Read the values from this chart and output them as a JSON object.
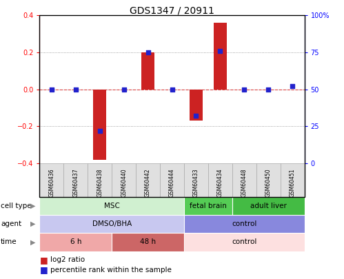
{
  "title": "GDS1347 / 20911",
  "samples": [
    "GSM60436",
    "GSM60437",
    "GSM60438",
    "GSM60440",
    "GSM60442",
    "GSM60444",
    "GSM60433",
    "GSM60434",
    "GSM60448",
    "GSM60450",
    "GSM60451"
  ],
  "log2_ratio": [
    0.0,
    0.0,
    -0.38,
    0.0,
    0.2,
    0.0,
    -0.17,
    0.36,
    0.0,
    0.0,
    0.0
  ],
  "percentile_rank": [
    50,
    50,
    22,
    50,
    75,
    50,
    32,
    76,
    50,
    50,
    52
  ],
  "ylim": [
    -0.4,
    0.4
  ],
  "y_ticks": [
    -0.4,
    -0.2,
    0.0,
    0.2,
    0.4
  ],
  "y2_ticks": [
    0,
    25,
    50,
    75,
    100
  ],
  "y2_tick_labels": [
    "0",
    "25",
    "50",
    "75",
    "100%"
  ],
  "cell_type_groups": [
    {
      "label": "MSC",
      "start": 0,
      "end": 5,
      "color": "#d0f0d0"
    },
    {
      "label": "fetal brain",
      "start": 6,
      "end": 7,
      "color": "#55cc55"
    },
    {
      "label": "adult liver",
      "start": 8,
      "end": 10,
      "color": "#44bb44"
    }
  ],
  "agent_groups": [
    {
      "label": "DMSO/BHA",
      "start": 0,
      "end": 5,
      "color": "#c8c8f0"
    },
    {
      "label": "control",
      "start": 6,
      "end": 10,
      "color": "#8888dd"
    }
  ],
  "time_groups": [
    {
      "label": "6 h",
      "start": 0,
      "end": 2,
      "color": "#f0a8a8"
    },
    {
      "label": "48 h",
      "start": 3,
      "end": 5,
      "color": "#cc6666"
    },
    {
      "label": "control",
      "start": 6,
      "end": 10,
      "color": "#fde0e0"
    }
  ],
  "bar_color": "#cc2222",
  "dot_color": "#2222cc",
  "hline_color": "#dd4444",
  "grid_color": "#888888",
  "sample_box_color": "#e0e0e0",
  "sample_box_edge": "#aaaaaa"
}
